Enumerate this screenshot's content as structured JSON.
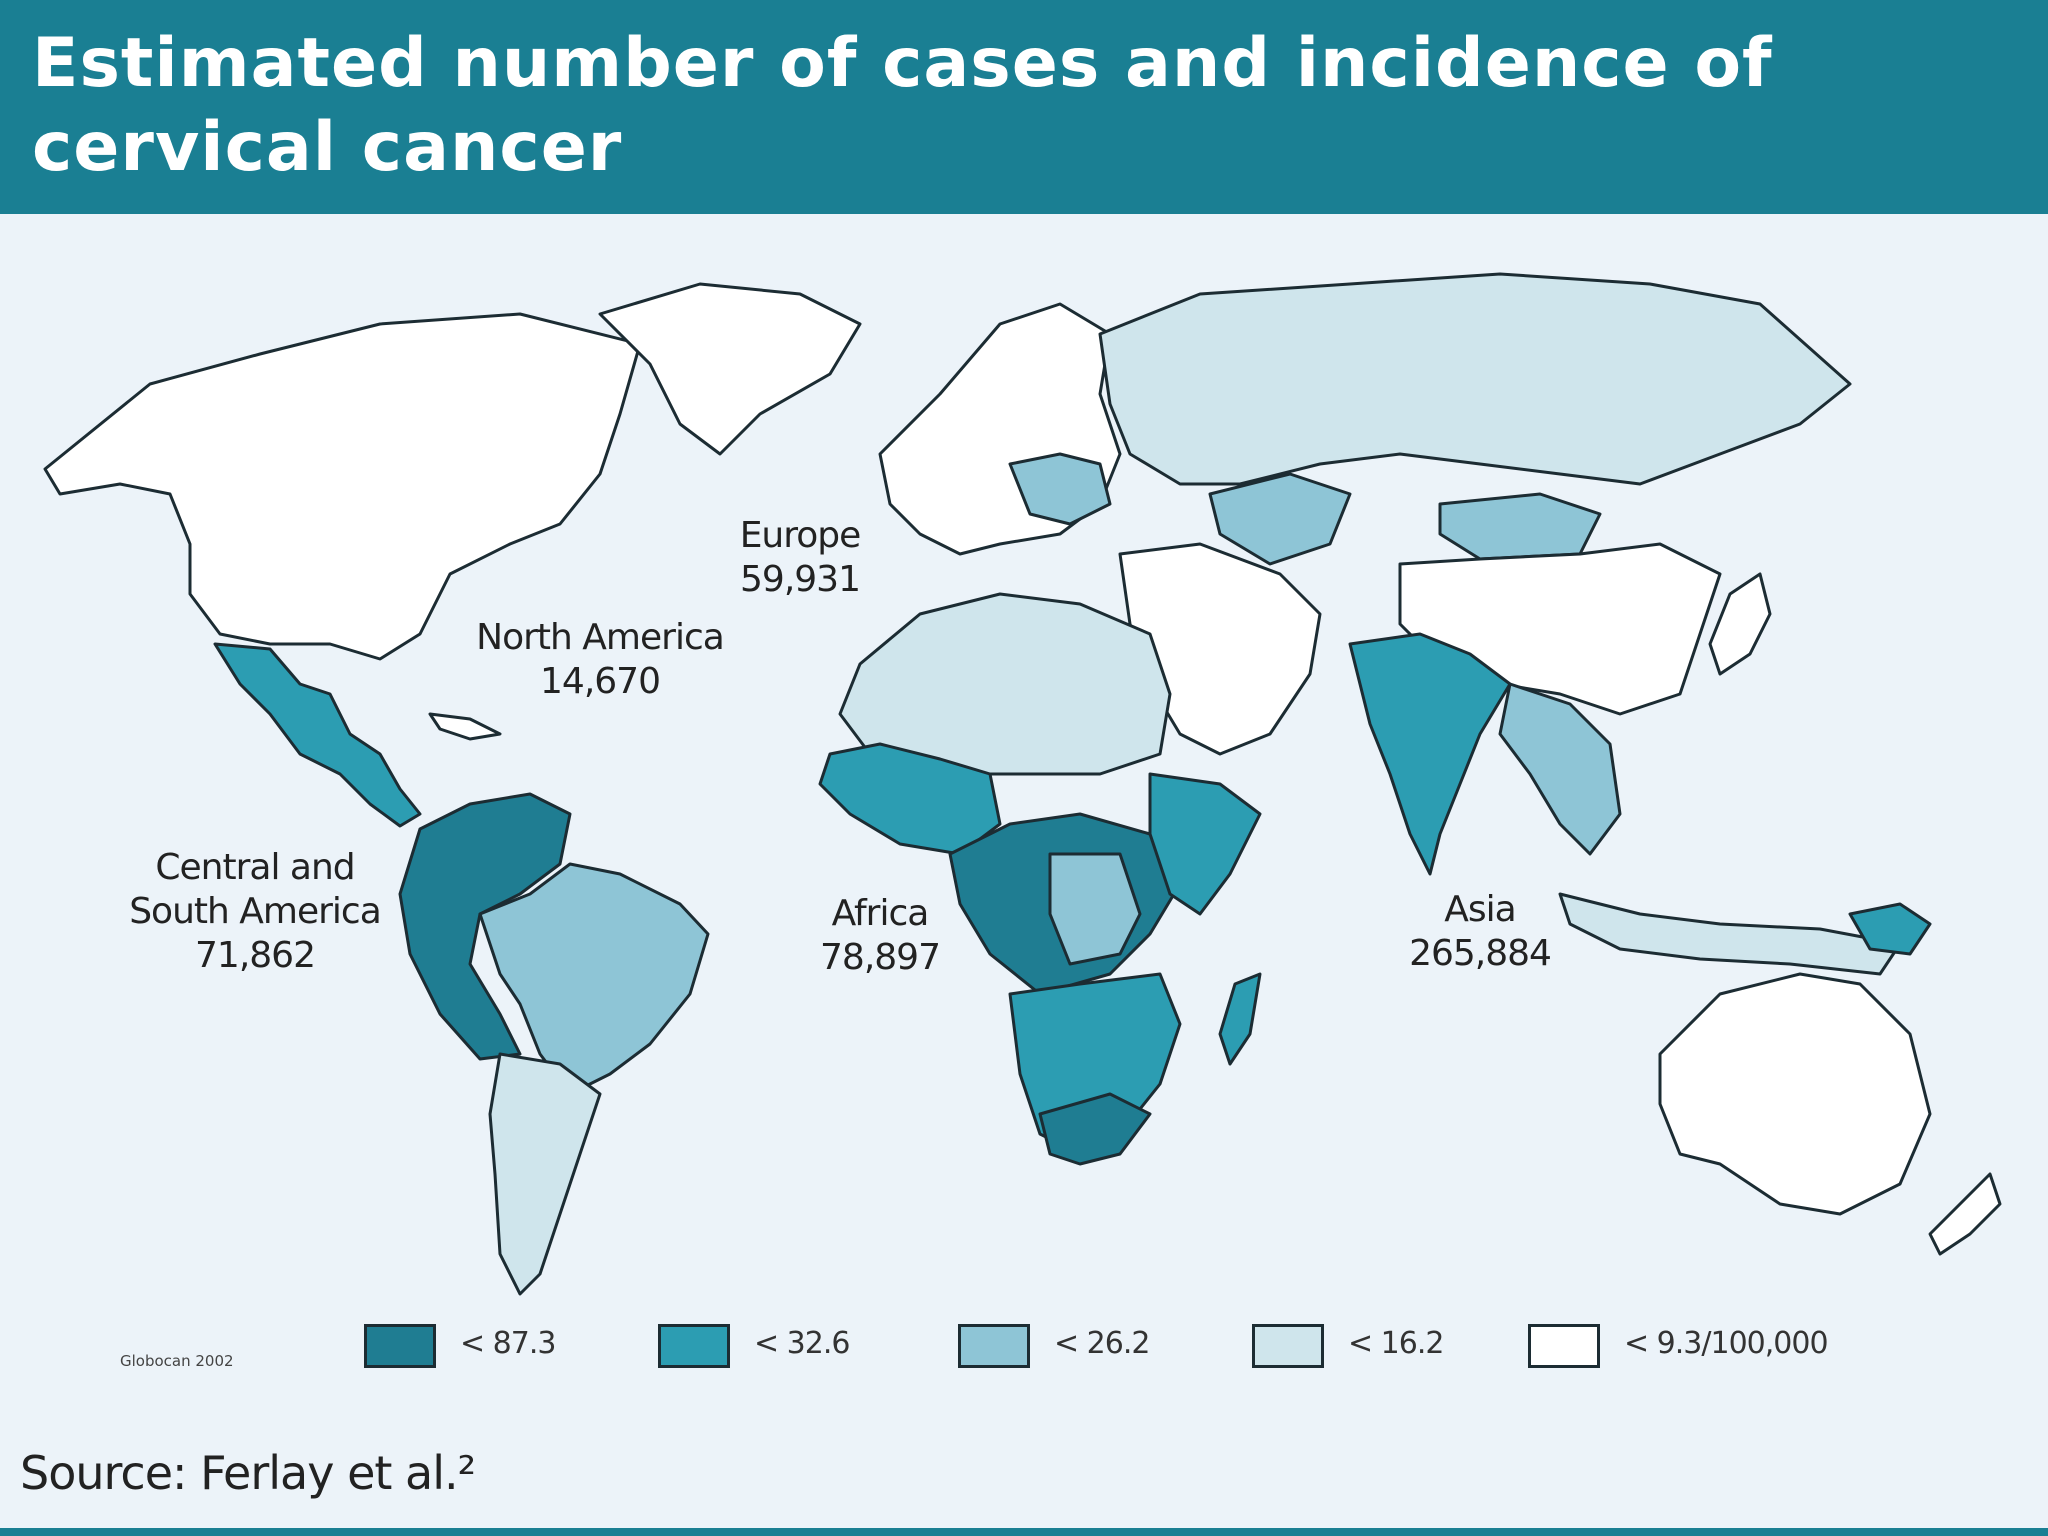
{
  "title": "Estimated number of cases and incidence of cervical cancer",
  "regions": [
    {
      "id": "north-america",
      "name": "North America",
      "cases": "14,670"
    },
    {
      "id": "europe",
      "name": "Europe",
      "cases": "59,931"
    },
    {
      "id": "central-south-america",
      "name_line1": "Central and",
      "name_line2": "South America",
      "cases": "71,862"
    },
    {
      "id": "africa",
      "name": "Africa",
      "cases": "78,897"
    },
    {
      "id": "asia",
      "name": "Asia",
      "cases": "265,884"
    }
  ],
  "legend": {
    "credit": "Globocan 2002",
    "items": [
      {
        "label": "< 87.3",
        "color": "#1f7d92"
      },
      {
        "label": "< 32.6",
        "color": "#2c9db2"
      },
      {
        "label": "< 26.2",
        "color": "#8ec5d6"
      },
      {
        "label": "< 16.2",
        "color": "#cfe5ec"
      },
      {
        "label": "< 9.3/100,000",
        "color": "#ffffff"
      }
    ]
  },
  "source": "Source: Ferlay et al.²",
  "colors": {
    "header": "#1a7f93",
    "background": "#ecf3f9",
    "border": "#1c2c33"
  }
}
